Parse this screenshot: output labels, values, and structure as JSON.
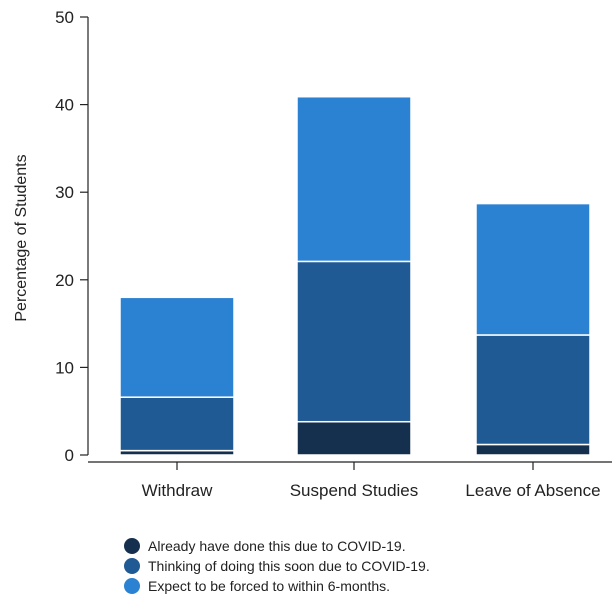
{
  "chart_data": {
    "type": "bar",
    "stacked": true,
    "categories": [
      "Withdraw",
      "Suspend Studies",
      "Leave of Absence"
    ],
    "series": [
      {
        "name": "Already have done this due to COVID-19.",
        "color": "#15304f",
        "values": [
          0.5,
          3.8,
          1.2
        ]
      },
      {
        "name": "Thinking of doing this soon due to COVID-19.",
        "color": "#1f5a94",
        "values": [
          6.1,
          18.3,
          12.5
        ]
      },
      {
        "name": "Expect to be forced to within 6-months.",
        "color": "#2b82d2",
        "values": [
          11.4,
          18.8,
          15.0
        ]
      }
    ],
    "xlabel": "",
    "ylabel": "Percentage of Students",
    "ylim": [
      0,
      50
    ],
    "yticks": [
      0,
      10,
      20,
      30,
      40,
      50
    ],
    "grid": false,
    "legend_position": "bottom-center"
  }
}
